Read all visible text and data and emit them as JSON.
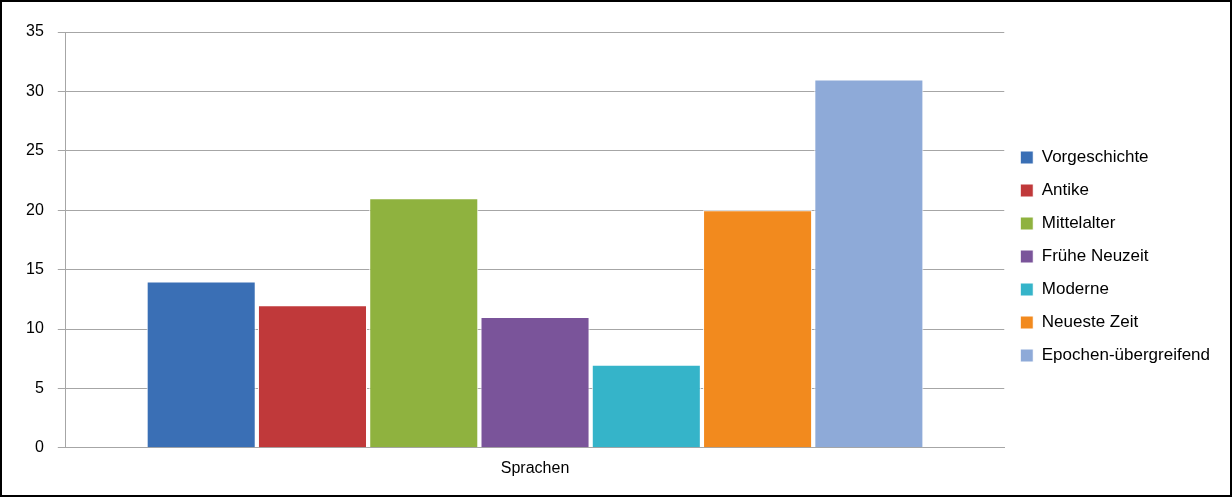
{
  "chart_data": {
    "type": "bar",
    "categories": [
      "Sprachen"
    ],
    "series": [
      {
        "name": "Vorgeschichte",
        "color": "#3a6fb5",
        "values": [
          14
        ]
      },
      {
        "name": "Antike",
        "color": "#c0393a",
        "values": [
          12
        ]
      },
      {
        "name": "Mittelalter",
        "color": "#8fb23f",
        "values": [
          21
        ]
      },
      {
        "name": "Frühe Neuzeit",
        "color": "#7a549a",
        "values": [
          11
        ]
      },
      {
        "name": "Moderne",
        "color": "#35b4c9",
        "values": [
          7
        ]
      },
      {
        "name": "Neueste Zeit",
        "color": "#f28a1e",
        "values": [
          20
        ]
      },
      {
        "name": "Epochen-übergreifend",
        "color": "#8eaad8",
        "values": [
          31
        ]
      }
    ],
    "ylim": [
      0,
      35
    ],
    "yticks": [
      0,
      5,
      10,
      15,
      20,
      25,
      30,
      35
    ],
    "grid": "y",
    "legend": "right"
  }
}
